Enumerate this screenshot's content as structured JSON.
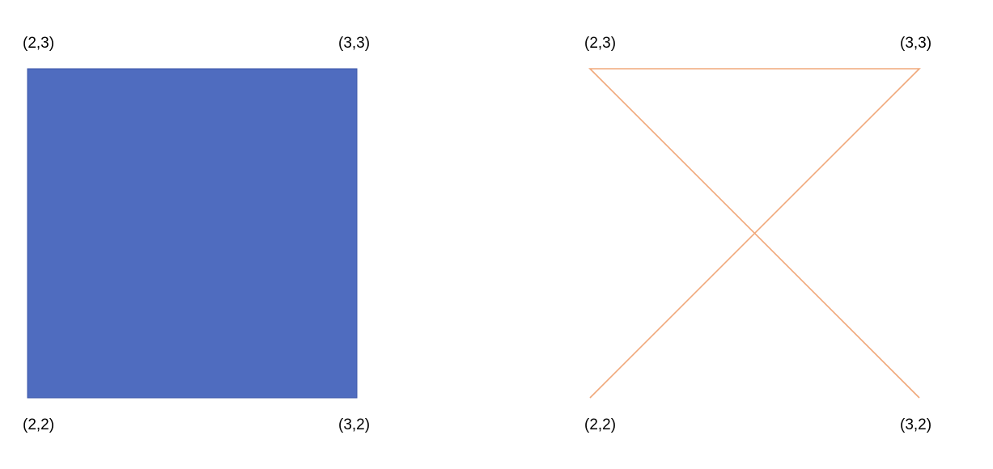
{
  "colors": {
    "square_fill": "#4F6CBF",
    "square_stroke": "#3C57A8",
    "cross_stroke": "#F0A87A",
    "label_text": "#000000",
    "background": "#FFFFFF"
  },
  "left_diagram": {
    "shape": "filled-square",
    "labels": {
      "top_left": "(2,3)",
      "top_right": "(3,3)",
      "bottom_left": "(2,2)",
      "bottom_right": "(3,2)"
    },
    "vertices": [
      {
        "point": "(2,3)",
        "coords": [
          2,
          3
        ]
      },
      {
        "point": "(3,3)",
        "coords": [
          3,
          3
        ]
      },
      {
        "point": "(3,2)",
        "coords": [
          3,
          2
        ]
      },
      {
        "point": "(2,2)",
        "coords": [
          2,
          2
        ]
      }
    ]
  },
  "right_diagram": {
    "shape": "bowtie-open-path",
    "labels": {
      "top_left": "(2,3)",
      "top_right": "(3,3)",
      "bottom_left": "(2,2)",
      "bottom_right": "(3,2)"
    },
    "path_order": [
      {
        "point": "(2,2)",
        "coords": [
          2,
          2
        ]
      },
      {
        "point": "(3,3)",
        "coords": [
          3,
          3
        ]
      },
      {
        "point": "(2,3)",
        "coords": [
          2,
          3
        ]
      },
      {
        "point": "(3,2)",
        "coords": [
          3,
          2
        ]
      }
    ]
  }
}
